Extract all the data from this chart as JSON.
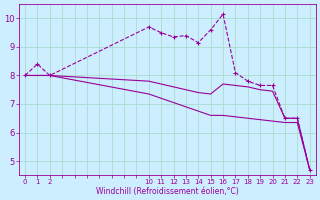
{
  "line1_x": [
    0,
    1,
    2,
    10,
    11,
    12,
    13,
    14,
    15,
    16,
    17,
    18,
    19,
    20,
    21,
    22,
    23
  ],
  "line1_y": [
    8.0,
    8.4,
    8.0,
    9.7,
    9.5,
    9.35,
    9.4,
    9.15,
    9.6,
    10.15,
    8.1,
    7.8,
    7.65,
    7.65,
    6.5,
    6.5,
    4.7
  ],
  "line2_x": [
    0,
    1,
    2,
    10,
    11,
    12,
    13,
    14,
    15,
    16,
    17,
    18,
    19,
    20,
    21,
    22,
    23
  ],
  "line2_y": [
    8.0,
    8.0,
    8.0,
    7.8,
    7.7,
    7.6,
    7.5,
    7.4,
    7.35,
    7.7,
    7.65,
    7.6,
    7.5,
    7.45,
    6.5,
    6.5,
    4.7
  ],
  "line3_x": [
    0,
    1,
    2,
    10,
    11,
    12,
    13,
    14,
    15,
    16,
    17,
    18,
    19,
    20,
    21,
    22,
    23
  ],
  "line3_y": [
    8.0,
    8.0,
    8.0,
    7.35,
    7.2,
    7.05,
    6.9,
    6.75,
    6.6,
    6.6,
    6.55,
    6.5,
    6.45,
    6.4,
    6.35,
    6.35,
    4.7
  ],
  "line_color": "#990099",
  "bg_color": "#cceeff",
  "grid_color": "#aaddcc",
  "xlabel": "Windchill (Refroidissement éolien,°C)",
  "ylim": [
    4.5,
    10.5
  ],
  "xlim": [
    -0.5,
    23.5
  ],
  "yticks": [
    5,
    6,
    7,
    8,
    9,
    10
  ],
  "xticks_labeled": [
    0,
    1,
    2,
    10,
    11,
    12,
    13,
    14,
    15,
    16,
    17,
    18,
    19,
    20,
    21,
    22,
    23
  ],
  "xticks_all": [
    0,
    1,
    2,
    3,
    4,
    5,
    6,
    7,
    8,
    9,
    10,
    11,
    12,
    13,
    14,
    15,
    16,
    17,
    18,
    19,
    20,
    21,
    22,
    23
  ]
}
